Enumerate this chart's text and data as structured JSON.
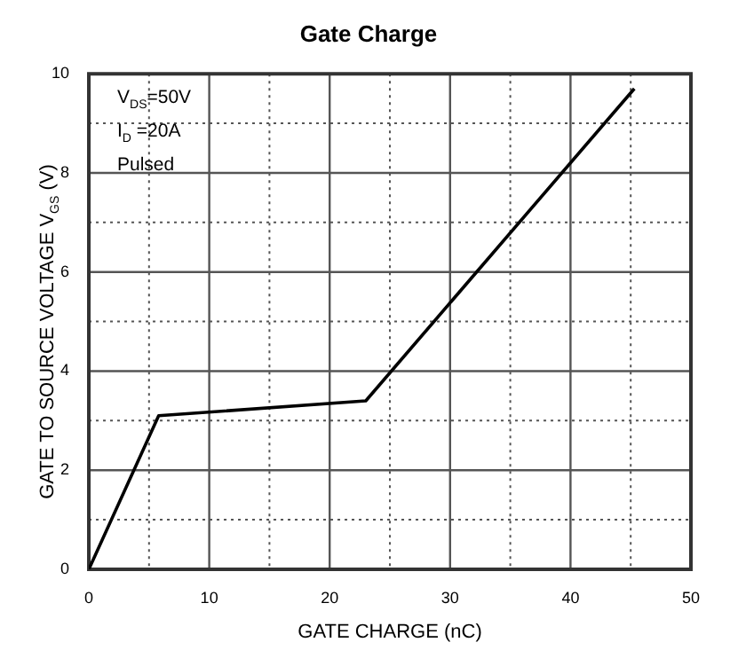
{
  "chart_data": {
    "type": "line",
    "title": "Gate Charge",
    "xlabel": "GATE CHARGE (nC)",
    "ylabel": "GATE TO SOURCE VOLTAGE   V$_{GS}$   (V)",
    "x": [
      0,
      5.8,
      23,
      45.3
    ],
    "series": [
      {
        "color": "#000000",
        "values": [
          0,
          3.1,
          3.4,
          9.7
        ]
      }
    ],
    "xlim": [
      0,
      50
    ],
    "ylim": [
      0,
      10
    ],
    "xticks": [
      0,
      {
        "value": 5,
        "label": null
      },
      10,
      {
        "value": 15,
        "label": null
      },
      20,
      {
        "value": 25,
        "label": null
      },
      30,
      {
        "value": 35,
        "label": null
      },
      40,
      {
        "value": 45,
        "label": null
      },
      50
    ],
    "yticks": [
      0,
      {
        "value": 1,
        "label": null
      },
      2,
      {
        "value": 3,
        "label": null
      },
      4,
      {
        "value": 5,
        "label": null
      },
      6,
      {
        "value": 7,
        "label": null
      },
      8,
      {
        "value": 9,
        "label": null
      },
      10
    ],
    "grid": true,
    "legend": false,
    "marker": "none",
    "line_style": "solid",
    "annotations": [
      "V$_{DS}$=50V",
      "I$_{D}$ =20A",
      "Pulsed"
    ]
  }
}
